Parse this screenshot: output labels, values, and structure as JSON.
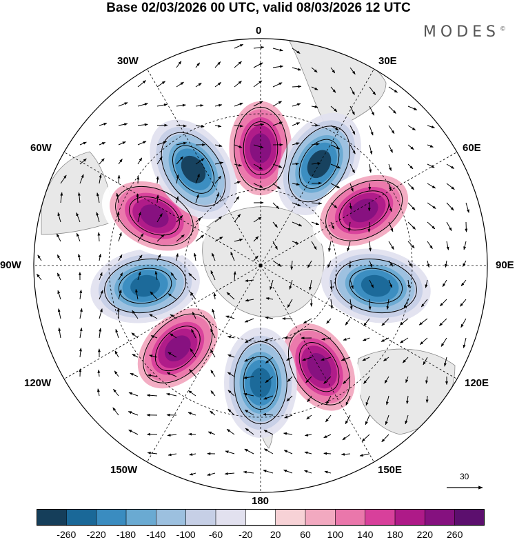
{
  "title": "Base 02/03/2026 00 UTC, valid 08/03/2026 12 UTC",
  "brand": "MODES",
  "brand_mark": "©",
  "longitude_labels": {
    "0": "0",
    "30E": "30E",
    "60E": "60E",
    "90E": "90E",
    "120E": "120E",
    "150E": "150E",
    "180": "180",
    "150W": "150W",
    "120W": "120W",
    "90W": "90W",
    "60W": "60W",
    "30W": "30W"
  },
  "reference_vector": {
    "label": "30",
    "magnitude": 30
  },
  "colorbar": {
    "tick_labels": [
      "-260",
      "-220",
      "-180",
      "-140",
      "-100",
      "-60",
      "-20",
      "20",
      "60",
      "100",
      "140",
      "180",
      "220",
      "260"
    ],
    "colors": [
      "#153e5a",
      "#1a6898",
      "#3a8cc0",
      "#6aaad2",
      "#9cc0df",
      "#c6cfe6",
      "#e2e1ef",
      "#ffffff",
      "#f7d2d6",
      "#f2a9c0",
      "#ea77ab",
      "#d8409b",
      "#ae1a88",
      "#85117f",
      "#5c0f6e"
    ]
  },
  "anomaly_centers": [
    {
      "name": "high-north",
      "lon": 0,
      "value": 240
    },
    {
      "name": "low-ne",
      "lon": 30,
      "value": -260
    },
    {
      "name": "high-east",
      "lon": 62,
      "value": 250
    },
    {
      "name": "low-east",
      "lon": 100,
      "value": -230
    },
    {
      "name": "high-se",
      "lon": 150,
      "value": 230
    },
    {
      "name": "low-south",
      "lon": 180,
      "value": -250
    },
    {
      "name": "high-sw",
      "lon": -135,
      "value": 240
    },
    {
      "name": "low-west",
      "lon": -100,
      "value": -240
    },
    {
      "name": "high-nw",
      "lon": -65,
      "value": 250
    },
    {
      "name": "low-nw",
      "lon": -35,
      "value": -260
    }
  ],
  "colors": {
    "land": "#e8e8e8",
    "coast": "#888888",
    "contour": "#000000"
  }
}
